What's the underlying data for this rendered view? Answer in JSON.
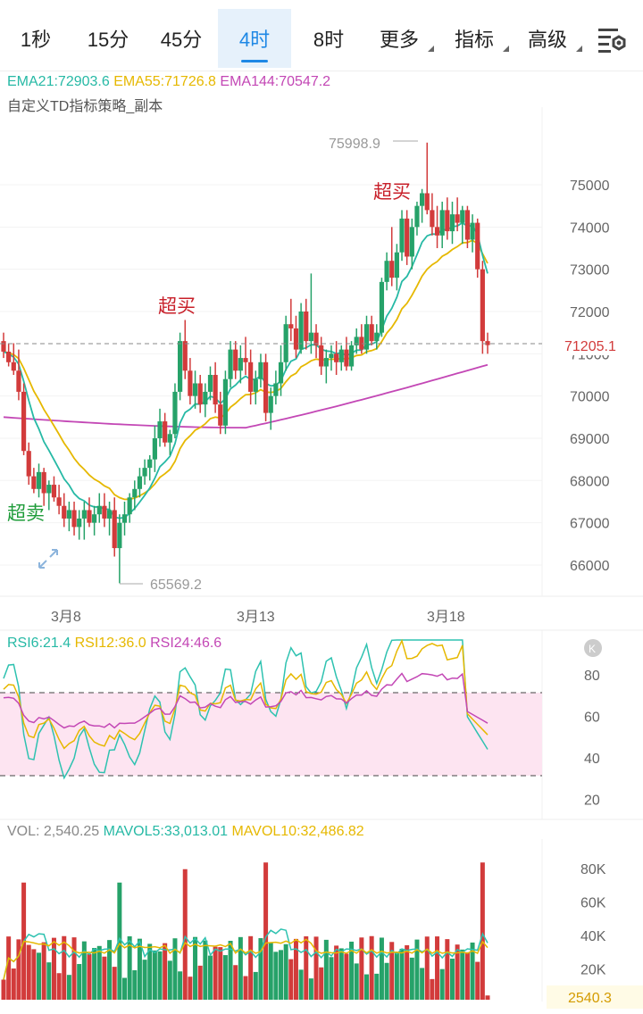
{
  "tabs": [
    {
      "label": "1秒",
      "active": false
    },
    {
      "label": "15分",
      "active": false
    },
    {
      "label": "45分",
      "active": false
    },
    {
      "label": "4时",
      "active": true
    },
    {
      "label": "8时",
      "active": false
    },
    {
      "label": "更多",
      "active": false,
      "dropdown": true
    },
    {
      "label": "指标",
      "active": false,
      "dropdown": true
    },
    {
      "label": "高级",
      "active": false,
      "dropdown": true
    }
  ],
  "settings_icon": "chart-settings-icon",
  "main": {
    "ema21": "EMA21:72903.6",
    "ema55": "EMA55:71726.8",
    "ema144": "EMA144:70547.2",
    "strategy": "自定义TD指标策略_副本",
    "price_ticks": [
      "75000",
      "74000",
      "73000",
      "72000",
      "71000",
      "70000",
      "69000",
      "68000",
      "67000",
      "66000"
    ],
    "last_price": "71205.1",
    "high_label": "75998.9",
    "low_label": "65569.2",
    "signals": [
      {
        "text": "超买",
        "type": "overbought"
      },
      {
        "text": "超买",
        "type": "overbought"
      },
      {
        "text": "超卖",
        "type": "oversold"
      }
    ],
    "date_labels": [
      "3月8",
      "3月13",
      "3月18"
    ]
  },
  "rsi": {
    "rsi6": "RSI6:21.4",
    "rsi12": "RSI12:36.0",
    "rsi24": "RSI24:46.6",
    "ticks": [
      "80",
      "60",
      "40",
      "20"
    ],
    "badge": "K"
  },
  "vol": {
    "vol": "VOL: 2,540.25",
    "mavol5": "MAVOL5:33,013.01",
    "mavol10": "MAVOL10:32,486.82",
    "ticks": [
      "80K",
      "60K",
      "40K",
      "20K"
    ],
    "current": "2540.3"
  },
  "colors": {
    "up": "#26a269",
    "down": "#d23b3b",
    "ema21": "#26b9a5",
    "ema55": "#e6b800",
    "ema144": "#c347b5",
    "rsi_band": "#fde4f1",
    "accent": "#1e88e5"
  }
}
